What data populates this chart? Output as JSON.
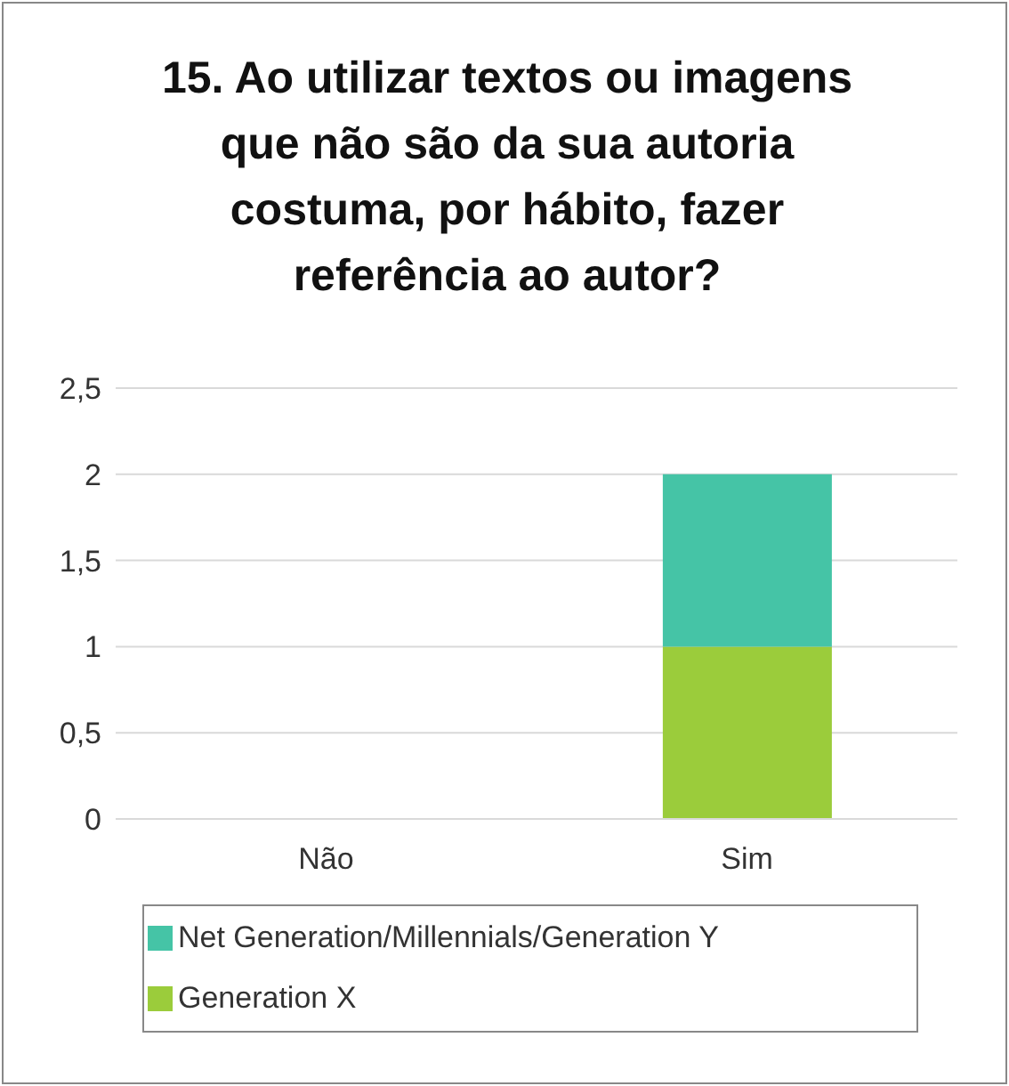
{
  "chart_data": {
    "type": "bar",
    "title": "15.  Ao utilizar textos ou imagens que não são da sua autoria costuma, por hábito, fazer referência ao autor?",
    "categories": [
      "Não",
      "Sim"
    ],
    "stacked": true,
    "series": [
      {
        "name": "Generation X",
        "color": "#9bcc3b",
        "values": [
          0,
          1
        ]
      },
      {
        "name": "Net Generation/Millennials/Generation Y",
        "color": "#45c4a6",
        "values": [
          0,
          1
        ]
      }
    ],
    "ylim": [
      0,
      2.5
    ],
    "yticks": [
      {
        "value": 0,
        "label": "0"
      },
      {
        "value": 0.5,
        "label": "0,5"
      },
      {
        "value": 1,
        "label": "1"
      },
      {
        "value": 1.5,
        "label": "1,5"
      },
      {
        "value": 2,
        "label": "2"
      },
      {
        "value": 2.5,
        "label": "2,5"
      }
    ],
    "grid": "y",
    "legend": "bottom"
  }
}
